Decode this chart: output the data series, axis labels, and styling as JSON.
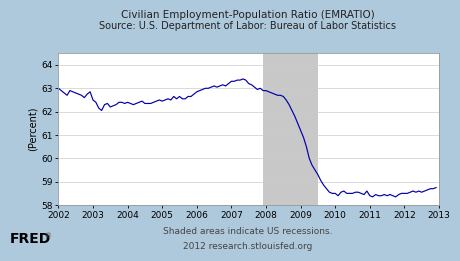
{
  "title_line1": "Civilian Employment-Population Ratio (EMRATIO)",
  "title_line2": "Source: U.S. Department of Labor: Bureau of Labor Statistics",
  "ylabel": "(Percent)",
  "footer_line1": "Shaded areas indicate US recessions.",
  "footer_line2": "2012 research.stlouisfed.org",
  "ylim": [
    58,
    64.5
  ],
  "yticks": [
    58,
    59,
    60,
    61,
    62,
    63,
    64
  ],
  "xlim_start": 2002.0,
  "xlim_end": 2013.0,
  "xtick_years": [
    2002,
    2003,
    2004,
    2005,
    2006,
    2007,
    2008,
    2009,
    2010,
    2011,
    2012,
    2013
  ],
  "recession_start": 2007.917,
  "recession_end": 2009.5,
  "line_color": "#0000AA",
  "recession_color": "#C8C8C8",
  "background_outer": "#AFC9DC",
  "background_plot": "#FFFFFF",
  "data_x": [
    2002.0,
    2002.083,
    2002.167,
    2002.25,
    2002.333,
    2002.417,
    2002.5,
    2002.583,
    2002.667,
    2002.75,
    2002.833,
    2002.917,
    2003.0,
    2003.083,
    2003.167,
    2003.25,
    2003.333,
    2003.417,
    2003.5,
    2003.583,
    2003.667,
    2003.75,
    2003.833,
    2003.917,
    2004.0,
    2004.083,
    2004.167,
    2004.25,
    2004.333,
    2004.417,
    2004.5,
    2004.583,
    2004.667,
    2004.75,
    2004.833,
    2004.917,
    2005.0,
    2005.083,
    2005.167,
    2005.25,
    2005.333,
    2005.417,
    2005.5,
    2005.583,
    2005.667,
    2005.75,
    2005.833,
    2005.917,
    2006.0,
    2006.083,
    2006.167,
    2006.25,
    2006.333,
    2006.417,
    2006.5,
    2006.583,
    2006.667,
    2006.75,
    2006.833,
    2006.917,
    2007.0,
    2007.083,
    2007.167,
    2007.25,
    2007.333,
    2007.417,
    2007.5,
    2007.583,
    2007.667,
    2007.75,
    2007.833,
    2007.917,
    2008.0,
    2008.083,
    2008.167,
    2008.25,
    2008.333,
    2008.417,
    2008.5,
    2008.583,
    2008.667,
    2008.75,
    2008.833,
    2008.917,
    2009.0,
    2009.083,
    2009.167,
    2009.25,
    2009.333,
    2009.417,
    2009.5,
    2009.583,
    2009.667,
    2009.75,
    2009.833,
    2009.917,
    2010.0,
    2010.083,
    2010.167,
    2010.25,
    2010.333,
    2010.417,
    2010.5,
    2010.583,
    2010.667,
    2010.75,
    2010.833,
    2010.917,
    2011.0,
    2011.083,
    2011.167,
    2011.25,
    2011.333,
    2011.417,
    2011.5,
    2011.583,
    2011.667,
    2011.75,
    2011.833,
    2011.917,
    2012.0,
    2012.083,
    2012.167,
    2012.25,
    2012.333,
    2012.417,
    2012.5,
    2012.583,
    2012.667,
    2012.75,
    2012.833,
    2012.917
  ],
  "data_y": [
    63.0,
    62.9,
    62.8,
    62.7,
    62.9,
    62.85,
    62.8,
    62.75,
    62.7,
    62.6,
    62.75,
    62.85,
    62.5,
    62.4,
    62.15,
    62.05,
    62.3,
    62.35,
    62.2,
    62.25,
    62.3,
    62.4,
    62.4,
    62.35,
    62.4,
    62.35,
    62.3,
    62.35,
    62.4,
    62.45,
    62.35,
    62.35,
    62.35,
    62.4,
    62.45,
    62.5,
    62.45,
    62.5,
    62.55,
    62.5,
    62.65,
    62.55,
    62.65,
    62.55,
    62.55,
    62.65,
    62.65,
    62.75,
    62.85,
    62.9,
    62.95,
    63.0,
    63.0,
    63.05,
    63.1,
    63.05,
    63.1,
    63.15,
    63.1,
    63.2,
    63.3,
    63.3,
    63.35,
    63.35,
    63.4,
    63.35,
    63.2,
    63.15,
    63.05,
    62.95,
    63.0,
    62.9,
    62.9,
    62.85,
    62.8,
    62.75,
    62.7,
    62.7,
    62.65,
    62.5,
    62.3,
    62.05,
    61.8,
    61.5,
    61.2,
    60.9,
    60.5,
    60.0,
    59.7,
    59.5,
    59.3,
    59.05,
    58.85,
    58.7,
    58.55,
    58.5,
    58.5,
    58.4,
    58.55,
    58.6,
    58.5,
    58.5,
    58.5,
    58.55,
    58.55,
    58.5,
    58.45,
    58.6,
    58.4,
    58.35,
    58.45,
    58.4,
    58.4,
    58.45,
    58.4,
    58.45,
    58.4,
    58.35,
    58.45,
    58.5,
    58.5,
    58.5,
    58.55,
    58.6,
    58.55,
    58.6,
    58.55,
    58.6,
    58.65,
    58.7,
    58.7,
    58.75
  ]
}
